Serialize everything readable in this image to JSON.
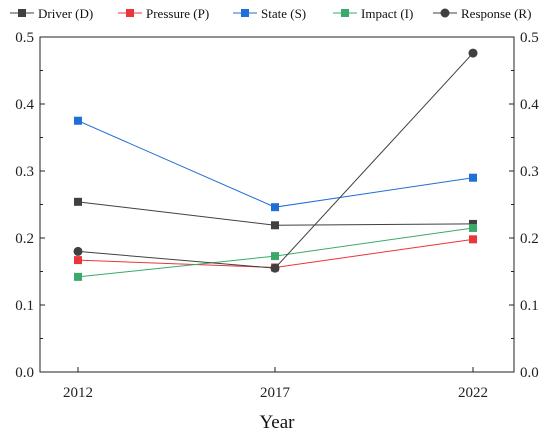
{
  "chart_data": {
    "type": "line",
    "x": [
      "2012",
      "2017",
      "2022"
    ],
    "xlabel": "Year",
    "ylabel": "",
    "ylim": [
      0,
      0.5
    ],
    "y_ticks": [
      "0.0",
      "0.1",
      "0.2",
      "0.3",
      "0.4",
      "0.5"
    ],
    "right_axis": true,
    "grid": false,
    "legend_position": "top",
    "series": [
      {
        "name": "Driver (D)",
        "values": [
          0.254,
          0.219,
          0.221
        ],
        "color": "#404040",
        "marker": "square"
      },
      {
        "name": "Pressure (P)",
        "values": [
          0.167,
          0.156,
          0.198
        ],
        "color": "#e8363b",
        "marker": "square"
      },
      {
        "name": "State (S)",
        "values": [
          0.375,
          0.246,
          0.29
        ],
        "color": "#1f6fd6",
        "marker": "square"
      },
      {
        "name": "Impact (I)",
        "values": [
          0.142,
          0.173,
          0.215
        ],
        "color": "#3aaa6a",
        "marker": "square"
      },
      {
        "name": "Response (R)",
        "values": [
          0.18,
          0.155,
          0.476
        ],
        "color": "#404040",
        "marker": "circle"
      }
    ]
  }
}
